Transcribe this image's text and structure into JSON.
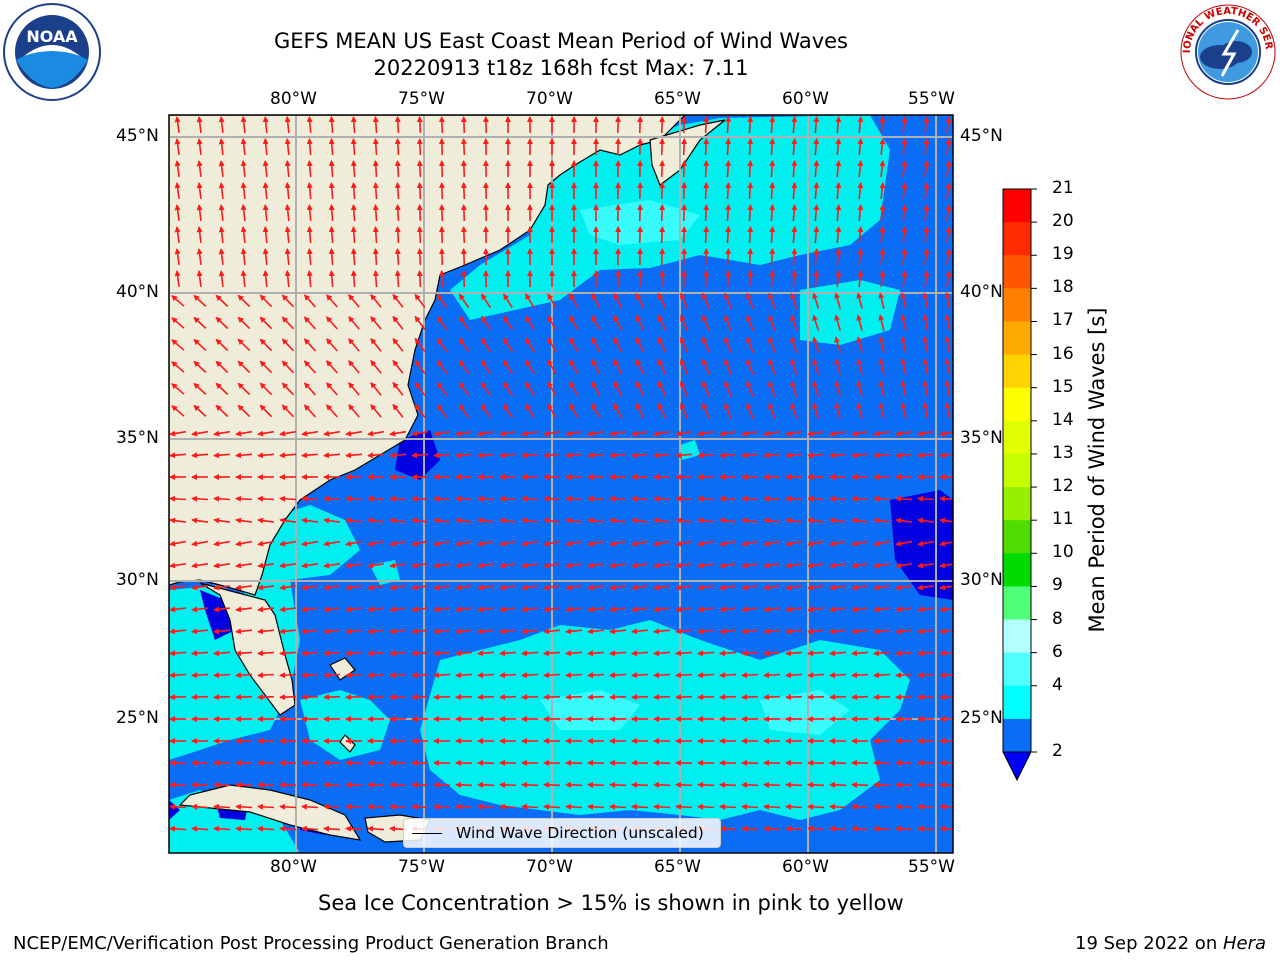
{
  "title": {
    "line1": "GEFS MEAN US East Coast Mean Period of Wind Waves",
    "line2": "20220913 t18z 168h fcst   Max: 7.11"
  },
  "logos": {
    "left": "noaa-logo",
    "right": "nws-logo",
    "noaa_text": "NOAA",
    "nws_text": "NATIONAL WEATHER SERVICE"
  },
  "map": {
    "lon_labels": [
      "80°W",
      "75°W",
      "70°W",
      "65°W",
      "60°W",
      "55°W"
    ],
    "lat_labels": [
      "45°N",
      "40°N",
      "35°N",
      "30°N",
      "25°N"
    ],
    "land_color": "#efedda",
    "ocean_colors": {
      "2-4": "#0a6df5",
      "4-6": "#00f0f0",
      "6-8": "#38fbfb",
      "below-2": "#0000e0"
    },
    "arrow_color": "#ff1a1a",
    "legend_text": "Wind Wave Direction (unscaled)"
  },
  "colorbar": {
    "title": "Mean Period of Wind Waves [s]",
    "ticks": [
      "21",
      "20",
      "19",
      "18",
      "17",
      "16",
      "15",
      "14",
      "13",
      "12",
      "11",
      "10",
      "9",
      "8",
      "6",
      "4",
      "2"
    ],
    "colors": [
      "#ff0000",
      "#ff2a00",
      "#ff5500",
      "#ff8000",
      "#ffaa00",
      "#ffd400",
      "#ffff00",
      "#e0ff00",
      "#c8ff00",
      "#96f000",
      "#50dc00",
      "#00dc00",
      "#50ff78",
      "#b4ffff",
      "#50ffff",
      "#00ffff",
      "#0a6df5"
    ],
    "extend_color": "#0000ff"
  },
  "subnote": "Sea Ice Concentration > 15% is shown in pink to yellow",
  "footer": {
    "left": "NCEP/EMC/Verification Post Processing Product Generation Branch",
    "right_prefix": "19 Sep 2022 on ",
    "right_host": "Hera"
  }
}
